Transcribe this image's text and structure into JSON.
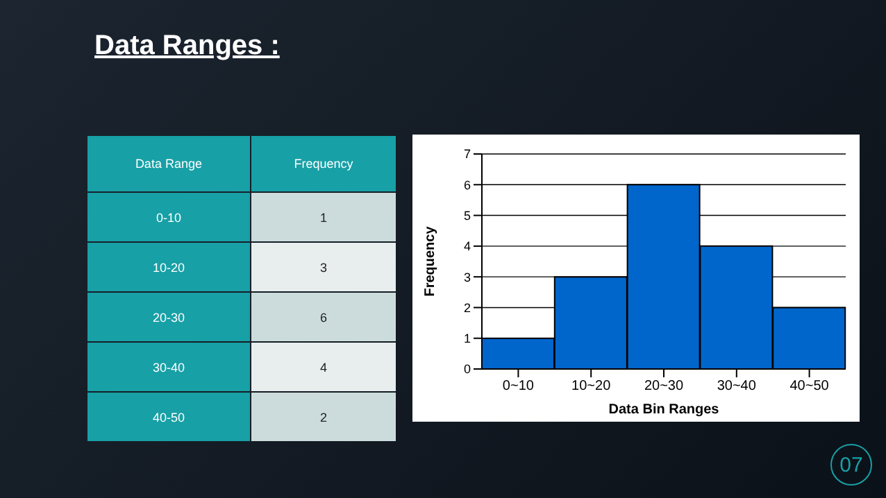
{
  "chart_data": {
    "type": "bar",
    "title": "Data Ranges :",
    "xlabel": "Data Bin Ranges",
    "ylabel": "Frequency",
    "categories": [
      "0~10",
      "10~20",
      "20~30",
      "30~40",
      "40~50"
    ],
    "values": [
      1,
      3,
      6,
      4,
      2
    ],
    "color": "#0066cc",
    "ylim": [
      0,
      7
    ],
    "yticks": [
      0,
      1,
      2,
      3,
      4,
      5,
      6,
      7
    ],
    "grid": "y",
    "annotations": [
      "Data Range",
      "Frequency",
      "0-10",
      "1",
      "10-20",
      "3",
      "20-30",
      "6",
      "30-40",
      "4",
      "40-50",
      "2",
      "07"
    ]
  }
}
